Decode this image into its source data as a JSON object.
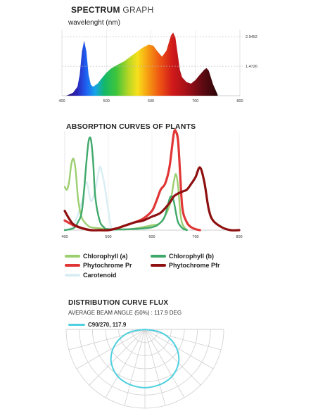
{
  "spectrum": {
    "title_bold": "SPECTRUM",
    "title_light": "GRAPH",
    "subtitle": "wavelenght (nm)"
  },
  "absorption": {
    "title": "ABSORPTION CURVES OF PLANTS"
  },
  "distribution": {
    "title": "DISTRIBUTION CURVE FLUX",
    "subtitle": "AVERAGE BEAM ANGLE (50%) : 117.9 DEG",
    "legend_label": "C90/270, 117.9",
    "legend_color": "#4fd0e0"
  },
  "chart_data": [
    {
      "type": "area",
      "title": "SPECTRUM GRAPH",
      "xlabel": "wavelenght (nm)",
      "xlim": [
        400,
        800
      ],
      "x_ticks": [
        "400",
        "500",
        "600",
        "700",
        "800"
      ],
      "y_ticks": [
        "2.9452",
        "1.4726"
      ],
      "ylim": [
        0,
        3.3
      ],
      "series": [
        {
          "x": [
            410,
            425,
            435,
            440,
            445,
            450,
            455,
            460,
            465,
            470,
            480,
            490,
            500,
            510,
            520,
            540,
            560,
            580,
            595,
            605,
            615,
            625,
            635,
            645,
            650,
            655,
            660,
            665,
            670,
            680,
            690,
            700,
            710,
            720,
            725,
            730,
            740,
            750
          ],
          "y": [
            0.0,
            0.15,
            0.45,
            1.05,
            2.2,
            2.75,
            2.2,
            1.05,
            0.55,
            0.45,
            0.6,
            0.88,
            1.15,
            1.35,
            1.48,
            1.72,
            2.05,
            2.38,
            2.55,
            2.5,
            2.2,
            1.95,
            2.25,
            3.0,
            3.15,
            2.9,
            2.1,
            1.3,
            0.92,
            0.68,
            0.6,
            0.78,
            1.05,
            1.3,
            1.38,
            1.25,
            0.55,
            0.05
          ]
        }
      ]
    },
    {
      "type": "line",
      "title": "ABSORPTION CURVES OF PLANTS",
      "xlim": [
        400,
        800
      ],
      "ylim": [
        0,
        1
      ],
      "x_ticks": [
        "400",
        "500",
        "600",
        "700",
        "800"
      ],
      "series": [
        {
          "name": "Chlorophyll (a)",
          "color": "#9bcf70",
          "x": [
            400,
            405,
            410,
            415,
            420,
            425,
            430,
            435,
            440,
            450,
            460,
            480,
            500,
            550,
            600,
            620,
            640,
            650,
            655,
            660,
            665,
            670,
            680
          ],
          "y": [
            0.45,
            0.42,
            0.5,
            0.68,
            0.74,
            0.62,
            0.35,
            0.2,
            0.12,
            0.06,
            0.03,
            0.02,
            0.01,
            0.01,
            0.05,
            0.08,
            0.25,
            0.5,
            0.58,
            0.45,
            0.18,
            0.06,
            0.0
          ]
        },
        {
          "name": "Chlorophyll (b)",
          "color": "#3fa86a",
          "x": [
            400,
            420,
            430,
            440,
            450,
            455,
            460,
            465,
            470,
            480,
            490,
            500,
            550,
            600,
            620,
            630,
            640,
            645,
            650,
            655,
            660,
            670,
            680
          ],
          "y": [
            0.0,
            0.02,
            0.08,
            0.22,
            0.72,
            0.93,
            0.94,
            0.72,
            0.35,
            0.1,
            0.03,
            0.01,
            0.01,
            0.03,
            0.08,
            0.15,
            0.32,
            0.35,
            0.3,
            0.18,
            0.08,
            0.02,
            0.0
          ]
        },
        {
          "name": "Phytochrome Pr",
          "color": "#e03636",
          "x": [
            400,
            420,
            440,
            460,
            480,
            500,
            520,
            540,
            560,
            580,
            600,
            610,
            620,
            630,
            640,
            650,
            655,
            660,
            665,
            670,
            680,
            690,
            700,
            710
          ],
          "y": [
            0.1,
            0.05,
            0.02,
            0.0,
            0.0,
            0.0,
            0.02,
            0.05,
            0.08,
            0.12,
            0.2,
            0.3,
            0.42,
            0.48,
            0.65,
            1.0,
            1.02,
            0.92,
            0.55,
            0.22,
            0.08,
            0.03,
            0.01,
            0.0
          ]
        },
        {
          "name": "Phytochrome Pfr",
          "color": "#8e1010",
          "x": [
            400,
            410,
            420,
            440,
            460,
            480,
            500,
            520,
            540,
            560,
            580,
            600,
            620,
            640,
            650,
            660,
            670,
            680,
            690,
            700,
            710,
            720,
            730,
            740,
            760,
            780,
            800
          ],
          "y": [
            0.2,
            0.12,
            0.06,
            0.02,
            0.0,
            0.0,
            0.0,
            0.02,
            0.05,
            0.08,
            0.1,
            0.14,
            0.18,
            0.28,
            0.35,
            0.38,
            0.4,
            0.42,
            0.48,
            0.55,
            0.65,
            0.5,
            0.22,
            0.1,
            0.03,
            0.0,
            0.0
          ]
        },
        {
          "name": "Carotenoid",
          "color": "#d9eef3",
          "x": [
            400,
            420,
            440,
            450,
            460,
            470,
            480,
            485,
            490,
            500,
            505,
            510,
            520
          ],
          "y": [
            0.0,
            0.05,
            0.3,
            0.5,
            0.3,
            0.42,
            0.65,
            0.6,
            0.5,
            0.2,
            0.05,
            0.0,
            0.0
          ]
        }
      ]
    },
    {
      "type": "polar",
      "title": "DISTRIBUTION CURVE FLUX",
      "series": [
        {
          "name": "C90/270, 117.9",
          "color": "#4fd0e0",
          "angle_deg": [
            -90,
            -80,
            -70,
            -60,
            -50,
            -40,
            -30,
            -20,
            -10,
            0,
            10,
            20,
            30,
            40,
            50,
            60,
            70,
            80,
            90
          ],
          "value": [
            0.0,
            0.25,
            0.45,
            0.62,
            0.76,
            0.86,
            0.93,
            0.97,
            0.99,
            1.0,
            0.99,
            0.97,
            0.93,
            0.86,
            0.76,
            0.62,
            0.45,
            0.25,
            0.0
          ]
        }
      ]
    }
  ]
}
